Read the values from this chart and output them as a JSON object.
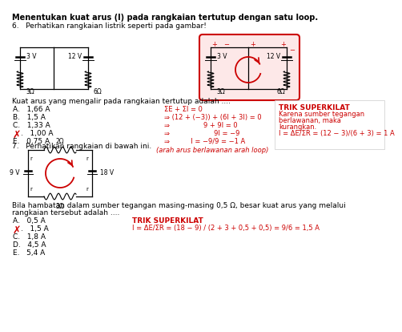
{
  "bg_color": "#ffffff",
  "text_color": "#000000",
  "red_color": "#cc0000",
  "title": "Menentukan kuat arus (I) pada rangkaian tertutup dengan satu loop.",
  "q6_header": "6.   Perhatikan rangkaian listrik seperti pada gambar!",
  "q6_prompt": "Kuat arus yang mengalir pada rangkaian tertutup adalah ....",
  "q6_answers": [
    "A.   1,66 A",
    "B.   1,5 A",
    "C.   1,33 A",
    "D.   1,00 A",
    "E.   0,75 A"
  ],
  "q6_wrong": 3,
  "q6_sol": [
    [
      0.42,
      "ΣE + ΣI = 0"
    ],
    [
      0.3,
      "⇒ (12 + (−3)) + (6I + 3I) = 0"
    ],
    [
      0.42,
      "⇒                9 + 9I = 0"
    ],
    [
      0.42,
      "⇒                     9I = −9"
    ],
    [
      0.42,
      "⇒          I = −9/9 = −1 A"
    ]
  ],
  "q6_note": "(arah arus berlawanan arah loop)",
  "trik1_title": "TRIK SUPERKILAT",
  "trik1_body": [
    "Karena sumber tegangan",
    "berlawanan, maka",
    "kurangkan."
  ],
  "trik1_formula": "ΔE      12 − 3",
  "trik1_formula2": "ΣR   (6 + 3)",
  "trik1_prefix": "I = ",
  "trik1_result": " = 1 A",
  "q7_header": "7.   Perhatikan rangkaian di bawah ini.",
  "q7_prompt1": "Bila hambatan dalam sumber tegangan masing-masing 0,5 Ω, besar kuat arus yang melalui",
  "q7_prompt2": "rangkaian tersebut adalah ....",
  "q7_answers": [
    "A.   0,5 A",
    "B.   1,5 A",
    "C.   1,8 A",
    "D.   4,5 A",
    "E.   5,4 A"
  ],
  "q7_wrong": 1,
  "trik2_title": "TRIK SUPERKILAT",
  "trik2_formula": "ΔE            18 − 9               9",
  "trik2_formula2": "ΣR   (2 + 3 + 0,5 + 0,5)   6",
  "trik2_prefix": "I = ",
  "trik2_result": " = 1,5 A"
}
